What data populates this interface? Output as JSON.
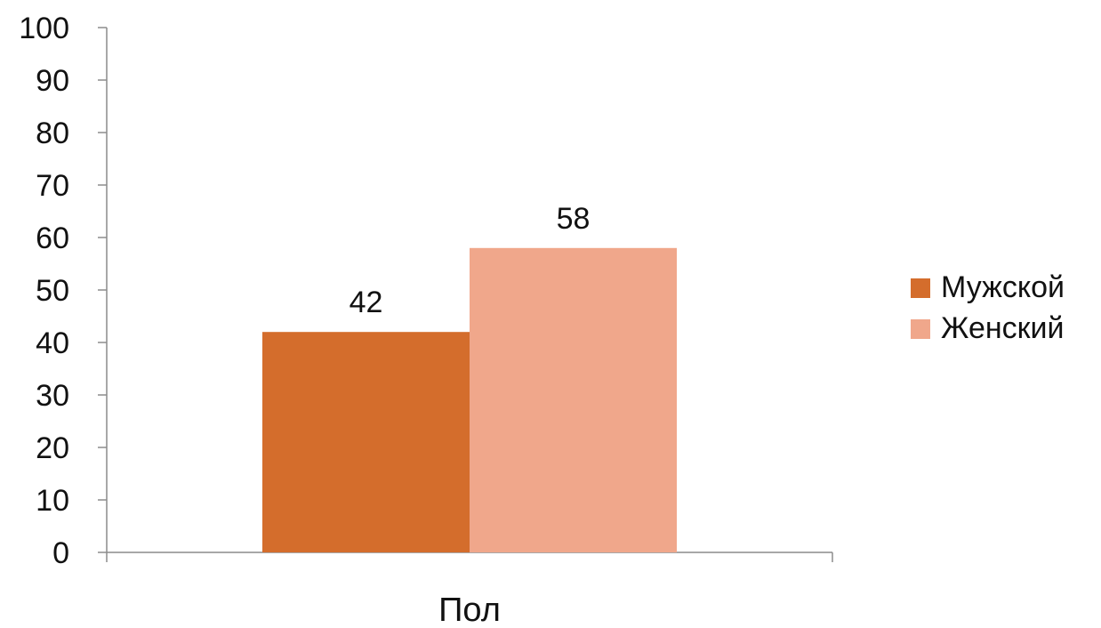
{
  "chart_data": {
    "type": "bar",
    "categories": [
      "Пол"
    ],
    "series": [
      {
        "name": "Мужской",
        "values": [
          42
        ],
        "color": "#D46D2C"
      },
      {
        "name": "Женский",
        "values": [
          58
        ],
        "color": "#F0A78B"
      }
    ],
    "title": "",
    "xlabel": "",
    "ylabel": "",
    "ylim": [
      0,
      100
    ],
    "yticks": [
      0,
      10,
      20,
      30,
      40,
      50,
      60,
      70,
      80,
      90,
      100
    ],
    "data_labels": true,
    "grid": false,
    "legend_position": "right",
    "axis_color": "#8C8C8C"
  }
}
